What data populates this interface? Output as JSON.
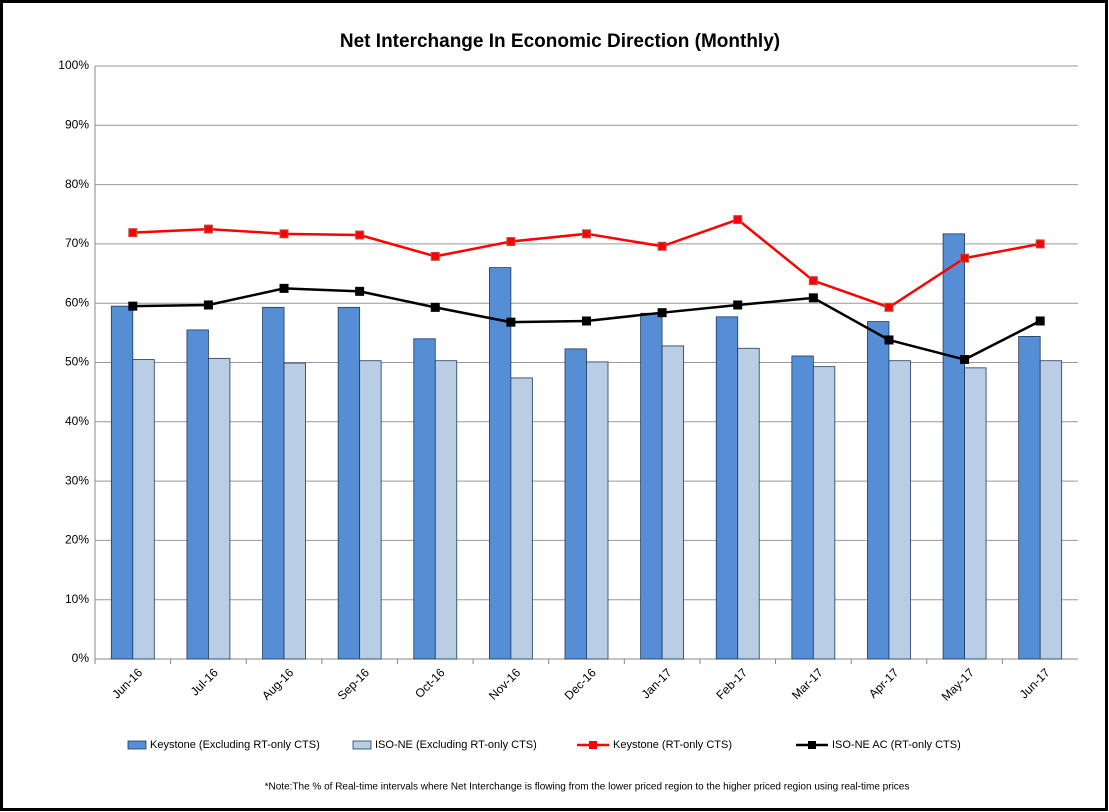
{
  "chart_data": {
    "type": "bar",
    "title": "Net Interchange In Economic Direction (Monthly)",
    "categories": [
      "Jun-16",
      "Jul-16",
      "Aug-16",
      "Sep-16",
      "Oct-16",
      "Nov-16",
      "Dec-16",
      "Jan-17",
      "Feb-17",
      "Mar-17",
      "Apr-17",
      "May-17",
      "Jun-17"
    ],
    "series": [
      {
        "name": "Keystone (Excluding RT-only CTS)",
        "type": "bar",
        "color": "#558ed5",
        "values": [
          59.5,
          55.5,
          59.3,
          59.3,
          54,
          66,
          52.3,
          58.3,
          57.7,
          51.1,
          56.9,
          71.7,
          54.4
        ]
      },
      {
        "name": "ISO-NE (Excluding RT-only CTS)",
        "type": "bar",
        "color": "#b9cde5",
        "values": [
          50.5,
          50.7,
          49.9,
          50.3,
          50.3,
          47.4,
          50.1,
          52.8,
          52.4,
          49.3,
          50.3,
          49.1,
          50.3
        ]
      },
      {
        "name": "Keystone (RT-only CTS)",
        "type": "line",
        "color": "#ff0000",
        "values": [
          71.9,
          72.5,
          71.7,
          71.5,
          67.9,
          70.4,
          71.7,
          69.6,
          74.1,
          63.8,
          59.3,
          67.6,
          70
        ]
      },
      {
        "name": "ISO-NE AC (RT-only CTS)",
        "type": "line",
        "color": "#000000",
        "values": [
          59.5,
          59.7,
          62.5,
          62,
          59.3,
          56.8,
          57,
          58.4,
          59.7,
          60.9,
          53.8,
          50.5,
          57
        ]
      }
    ],
    "ylim": [
      0,
      100
    ],
    "yticks": [
      {
        "value": 0,
        "label": "0%"
      },
      {
        "value": 10,
        "label": "10%"
      },
      {
        "value": 20,
        "label": "20%"
      },
      {
        "value": 30,
        "label": "30%"
      },
      {
        "value": 40,
        "label": "40%"
      },
      {
        "value": 50,
        "label": "50%"
      },
      {
        "value": 60,
        "label": "60%"
      },
      {
        "value": 70,
        "label": "70%"
      },
      {
        "value": 80,
        "label": "80%"
      },
      {
        "value": 90,
        "label": "90%"
      },
      {
        "value": 100,
        "label": "100%"
      }
    ],
    "grid": true,
    "legend": "bottom",
    "note": "*Note:The % of Real-time intervals where Net Interchange is flowing from the lower priced region to the higher priced region using real-time prices"
  }
}
